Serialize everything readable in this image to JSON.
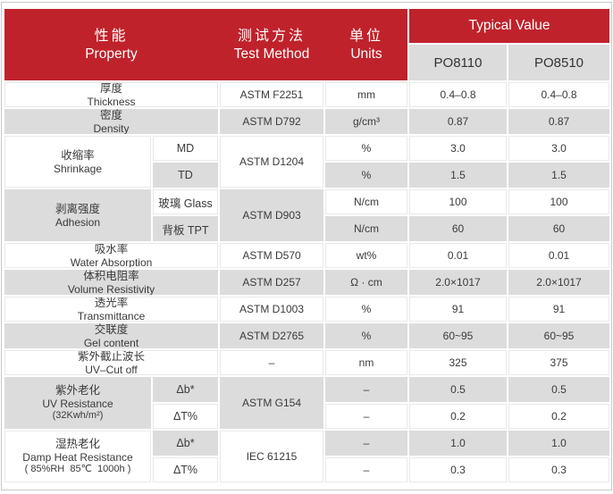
{
  "colors": {
    "accent_red": "#c0222b",
    "row_gray": "#dcdcdc",
    "text": "#3a3a3a"
  },
  "header": {
    "property": {
      "zh": "性能",
      "en": "Property"
    },
    "method": {
      "zh": "测试方法",
      "en": "Test Method"
    },
    "units": {
      "zh": "单位",
      "en": "Units"
    },
    "typical_value": "Typical Value",
    "products": [
      "PO8110",
      "PO8510"
    ]
  },
  "rows": {
    "thickness": {
      "zh": "厚度",
      "en": "Thickness",
      "method": "ASTM F2251",
      "unit": "mm",
      "po8110": "0.4–0.8",
      "po8510": "0.4–0.8"
    },
    "density": {
      "zh": "密度",
      "en": "Density",
      "method": "ASTM D792",
      "unit": "g/cm³",
      "po8110": "0.87",
      "po8510": "0.87"
    },
    "shrinkage": {
      "zh": "收缩率",
      "en": "Shrinkage",
      "method": "ASTM D1204",
      "sub": [
        {
          "label": "MD",
          "unit": "%",
          "po8110": "3.0",
          "po8510": "3.0"
        },
        {
          "label": "TD",
          "unit": "%",
          "po8110": "1.5",
          "po8510": "1.5"
        }
      ]
    },
    "adhesion": {
      "zh": "剥离强度",
      "en": "Adhesion",
      "method": "ASTM D903",
      "sub": [
        {
          "label": "玻璃 Glass",
          "unit": "N/cm",
          "po8110": "100",
          "po8510": "100"
        },
        {
          "label": "背板 TPT",
          "unit": "N/cm",
          "po8110": "60",
          "po8510": "60"
        }
      ]
    },
    "water_absorption": {
      "zh": "吸水率",
      "en": "Water Absorption",
      "method": "ASTM D570",
      "unit": "wt%",
      "po8110": "0.01",
      "po8510": "0.01"
    },
    "volume_resistivity": {
      "zh": "体积电阻率",
      "en": "Volume Resistivity",
      "method": "ASTM D257",
      "unit": "Ω · cm",
      "po8110": "2.0×1017",
      "po8510": "2.0×1017"
    },
    "transmittance": {
      "zh": "透光率",
      "en": "Transmittance",
      "method": "ASTM D1003",
      "unit": "%",
      "po8110": "91",
      "po8510": "91"
    },
    "gel_content": {
      "zh": "交联度",
      "en": "Gel content",
      "method": "ASTM D2765",
      "unit": "%",
      "po8110": "60~95",
      "po8510": "60~95"
    },
    "uv_cut_off": {
      "zh": "紫外截止波长",
      "en": "UV–Cut off",
      "method": "–",
      "unit": "nm",
      "po8110": "325",
      "po8510": "375"
    },
    "uv_resistance": {
      "zh": "紫外老化",
      "en": "UV Resistance",
      "note": "(32Kwh/m²)",
      "method": "ASTM G154",
      "sub": [
        {
          "label": "Δb*",
          "unit": "–",
          "po8110": "0.5",
          "po8510": "0.5"
        },
        {
          "label": "ΔT%",
          "unit": "–",
          "po8110": "0.2",
          "po8510": "0.2"
        }
      ]
    },
    "damp_heat": {
      "zh": "湿热老化",
      "en": "Damp Heat Resistance",
      "note": "( 85%RH  85℃  1000h )",
      "method": "IEC 61215",
      "sub": [
        {
          "label": "Δb*",
          "unit": "–",
          "po8110": "1.0",
          "po8510": "1.0"
        },
        {
          "label": "ΔT%",
          "unit": "–",
          "po8110": "0.3",
          "po8510": "0.3"
        }
      ]
    }
  }
}
